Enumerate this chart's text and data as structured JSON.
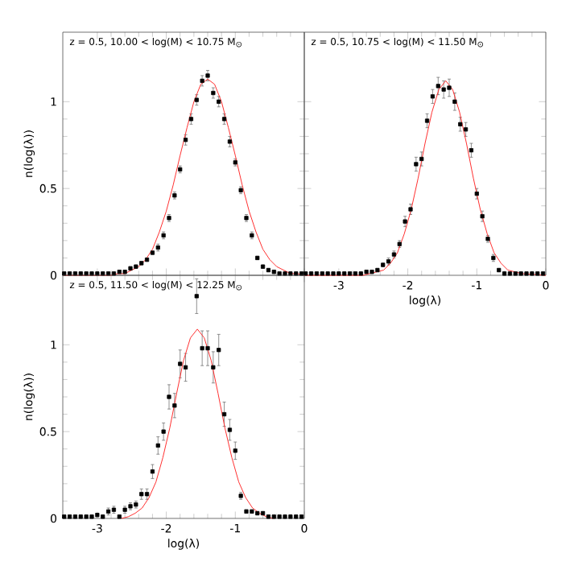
{
  "chart_data": [
    {
      "type": "scatter",
      "title": "z = 0.5, 10.00 < log(M) < 10.75 M$_{⊙}$",
      "ylabel": "n(log(λ))",
      "xlim": [
        -3.5,
        0
      ],
      "ylim": [
        0,
        1.4
      ],
      "xticks": [
        -3,
        -2,
        -1,
        0
      ],
      "yticks": [
        0,
        0.5,
        1
      ],
      "tick_labels": "y",
      "series": [
        {
          "marker": "square",
          "color": "#000000",
          "x": [
            -3.48,
            -3.4,
            -3.32,
            -3.24,
            -3.16,
            -3.08,
            -3.0,
            -2.92,
            -2.84,
            -2.76,
            -2.68,
            -2.6,
            -2.52,
            -2.44,
            -2.36,
            -2.28,
            -2.2,
            -2.12,
            -2.04,
            -1.96,
            -1.88,
            -1.8,
            -1.72,
            -1.64,
            -1.56,
            -1.48,
            -1.4,
            -1.32,
            -1.24,
            -1.16,
            -1.08,
            -1.0,
            -0.92,
            -0.84,
            -0.76,
            -0.68,
            -0.6,
            -0.52,
            -0.44,
            -0.36,
            -0.28,
            -0.2,
            -0.12,
            -0.04
          ],
          "values": [
            0.01,
            0.01,
            0.01,
            0.01,
            0.01,
            0.01,
            0.01,
            0.01,
            0.01,
            0.01,
            0.02,
            0.02,
            0.04,
            0.05,
            0.07,
            0.09,
            0.13,
            0.16,
            0.23,
            0.33,
            0.46,
            0.61,
            0.78,
            0.9,
            1.01,
            1.12,
            1.15,
            1.05,
            1.0,
            0.9,
            0.77,
            0.65,
            0.49,
            0.33,
            0.23,
            0.1,
            0.05,
            0.03,
            0.02,
            0.01,
            0.01,
            0.01,
            0.01,
            0.01
          ],
          "errors": [
            0.01,
            0.01,
            0.01,
            0.01,
            0.01,
            0.01,
            0.01,
            0.01,
            0.01,
            0.01,
            0.01,
            0.01,
            0.01,
            0.01,
            0.01,
            0.01,
            0.01,
            0.02,
            0.02,
            0.02,
            0.02,
            0.02,
            0.03,
            0.03,
            0.03,
            0.03,
            0.03,
            0.03,
            0.03,
            0.03,
            0.03,
            0.02,
            0.02,
            0.02,
            0.02,
            0.01,
            0.01,
            0.01,
            0.01,
            0.01,
            0.01,
            0.01,
            0.01,
            0.01
          ]
        },
        {
          "type": "line",
          "color": "#ff3030",
          "x": [
            -3.5,
            -2.8,
            -2.7,
            -2.6,
            -2.5,
            -2.4,
            -2.3,
            -2.2,
            -2.1,
            -2.0,
            -1.9,
            -1.8,
            -1.7,
            -1.6,
            -1.5,
            -1.4,
            -1.3,
            -1.2,
            -1.1,
            -1.0,
            -0.9,
            -0.8,
            -0.7,
            -0.6,
            -0.5,
            -0.4,
            -0.3,
            -0.2,
            -0.1,
            0.0
          ],
          "values": [
            0.0,
            0.0,
            0.01,
            0.01,
            0.03,
            0.05,
            0.09,
            0.15,
            0.25,
            0.37,
            0.52,
            0.69,
            0.85,
            1.0,
            1.1,
            1.13,
            1.1,
            1.0,
            0.85,
            0.69,
            0.52,
            0.37,
            0.25,
            0.15,
            0.09,
            0.05,
            0.03,
            0.01,
            0.01,
            0.0
          ]
        }
      ]
    },
    {
      "type": "scatter",
      "title": "z = 0.5, 10.75 < log(M) < 11.50 M$_{⊙}$",
      "xlabel": "log(λ)",
      "xlim": [
        -3.5,
        0
      ],
      "ylim": [
        0,
        1.4
      ],
      "xticks": [
        -3,
        -2,
        -1,
        0
      ],
      "yticks": [
        0,
        0.5,
        1
      ],
      "tick_labels": "x",
      "series": [
        {
          "marker": "square",
          "color": "#000000",
          "x": [
            -3.48,
            -3.4,
            -3.32,
            -3.24,
            -3.16,
            -3.08,
            -3.0,
            -2.92,
            -2.84,
            -2.76,
            -2.68,
            -2.6,
            -2.52,
            -2.44,
            -2.36,
            -2.28,
            -2.2,
            -2.12,
            -2.04,
            -1.96,
            -1.88,
            -1.8,
            -1.72,
            -1.64,
            -1.56,
            -1.48,
            -1.4,
            -1.32,
            -1.24,
            -1.16,
            -1.08,
            -1.0,
            -0.92,
            -0.84,
            -0.76,
            -0.68,
            -0.6,
            -0.52,
            -0.44,
            -0.36,
            -0.28,
            -0.2,
            -0.12,
            -0.04
          ],
          "values": [
            0.01,
            0.01,
            0.01,
            0.01,
            0.01,
            0.01,
            0.01,
            0.01,
            0.01,
            0.01,
            0.01,
            0.02,
            0.02,
            0.03,
            0.06,
            0.08,
            0.12,
            0.18,
            0.31,
            0.38,
            0.64,
            0.67,
            0.89,
            1.03,
            1.09,
            1.07,
            1.08,
            1.0,
            0.87,
            0.84,
            0.72,
            0.47,
            0.34,
            0.21,
            0.1,
            0.03,
            0.01,
            0.01,
            0.01,
            0.01,
            0.01,
            0.01,
            0.01,
            0.01
          ],
          "errors": [
            0.01,
            0.01,
            0.01,
            0.01,
            0.01,
            0.01,
            0.01,
            0.01,
            0.01,
            0.01,
            0.01,
            0.01,
            0.01,
            0.01,
            0.01,
            0.02,
            0.02,
            0.02,
            0.03,
            0.03,
            0.04,
            0.04,
            0.04,
            0.04,
            0.05,
            0.05,
            0.05,
            0.05,
            0.04,
            0.04,
            0.04,
            0.03,
            0.03,
            0.02,
            0.02,
            0.01,
            0.01,
            0.01,
            0.01,
            0.01,
            0.01,
            0.01,
            0.01,
            0.01
          ]
        },
        {
          "type": "line",
          "color": "#ff3030",
          "x": [
            -3.5,
            -2.75,
            -2.65,
            -2.55,
            -2.45,
            -2.35,
            -2.25,
            -2.15,
            -2.05,
            -1.95,
            -1.85,
            -1.75,
            -1.65,
            -1.55,
            -1.45,
            -1.35,
            -1.25,
            -1.15,
            -1.05,
            -0.95,
            -0.85,
            -0.75,
            -0.65,
            -0.55,
            -0.45,
            -0.35,
            0.0
          ],
          "values": [
            0.0,
            0.0,
            0.0,
            0.01,
            0.02,
            0.03,
            0.07,
            0.13,
            0.24,
            0.38,
            0.56,
            0.76,
            0.94,
            1.07,
            1.12,
            1.07,
            0.94,
            0.76,
            0.56,
            0.38,
            0.24,
            0.13,
            0.07,
            0.03,
            0.02,
            0.01,
            0.0
          ]
        }
      ]
    },
    {
      "type": "scatter",
      "title": "z = 0.5, 11.50 < log(M) < 12.25 M$_{⊙}$",
      "xlabel": "log(λ)",
      "ylabel": "n(log(λ))",
      "xlim": [
        -3.5,
        0
      ],
      "ylim": [
        0,
        1.4
      ],
      "xticks": [
        -3,
        -2,
        -1,
        0
      ],
      "yticks": [
        0,
        0.5,
        1
      ],
      "series": [
        {
          "marker": "square",
          "color": "#000000",
          "x": [
            -3.48,
            -3.4,
            -3.32,
            -3.24,
            -3.16,
            -3.08,
            -3.0,
            -2.92,
            -2.84,
            -2.76,
            -2.68,
            -2.6,
            -2.52,
            -2.44,
            -2.36,
            -2.28,
            -2.2,
            -2.12,
            -2.04,
            -1.96,
            -1.88,
            -1.8,
            -1.72,
            -1.64,
            -1.56,
            -1.48,
            -1.4,
            -1.32,
            -1.24,
            -1.16,
            -1.08,
            -1.0,
            -0.92,
            -0.84,
            -0.76,
            -0.68,
            -0.6,
            -0.52,
            -0.44,
            -0.36,
            -0.28,
            -0.2,
            -0.12,
            -0.04
          ],
          "values": [
            0.01,
            0.01,
            0.01,
            0.01,
            0.01,
            0.01,
            0.02,
            0.01,
            0.04,
            0.05,
            0.01,
            0.05,
            0.07,
            0.08,
            0.14,
            0.14,
            0.27,
            0.42,
            0.5,
            0.7,
            0.65,
            0.89,
            0.87,
            null,
            1.28,
            0.98,
            0.98,
            0.87,
            0.97,
            0.6,
            0.51,
            0.39,
            0.13,
            0.04,
            0.04,
            0.03,
            0.03,
            0.01,
            0.01,
            0.01,
            0.01,
            0.01,
            0.01,
            0.01
          ],
          "errors": [
            0.01,
            0.01,
            0.01,
            0.01,
            0.01,
            0.01,
            0.01,
            0.01,
            0.02,
            0.02,
            0.01,
            0.02,
            0.02,
            0.02,
            0.03,
            0.03,
            0.04,
            0.05,
            0.05,
            0.07,
            0.07,
            0.08,
            0.08,
            null,
            0.1,
            0.1,
            0.1,
            0.09,
            0.09,
            0.07,
            0.06,
            0.05,
            0.02,
            0.01,
            0.01,
            0.01,
            0.01,
            0.01,
            0.01,
            0.01,
            0.01,
            0.01,
            0.01,
            0.01
          ]
        },
        {
          "type": "line",
          "color": "#ff3030",
          "x": [
            -2.65,
            -2.55,
            -2.45,
            -2.35,
            -2.25,
            -2.15,
            -2.05,
            -1.95,
            -1.85,
            -1.75,
            -1.65,
            -1.55,
            -1.45,
            -1.35,
            -1.25,
            -1.15,
            -1.05,
            -0.95,
            -0.85,
            -0.75,
            -0.65,
            -0.55,
            -0.45
          ],
          "values": [
            0.0,
            0.01,
            0.03,
            0.06,
            0.12,
            0.21,
            0.35,
            0.52,
            0.72,
            0.91,
            1.04,
            1.09,
            1.04,
            0.91,
            0.72,
            0.52,
            0.35,
            0.21,
            0.12,
            0.06,
            0.03,
            0.01,
            0.0
          ]
        }
      ]
    }
  ]
}
